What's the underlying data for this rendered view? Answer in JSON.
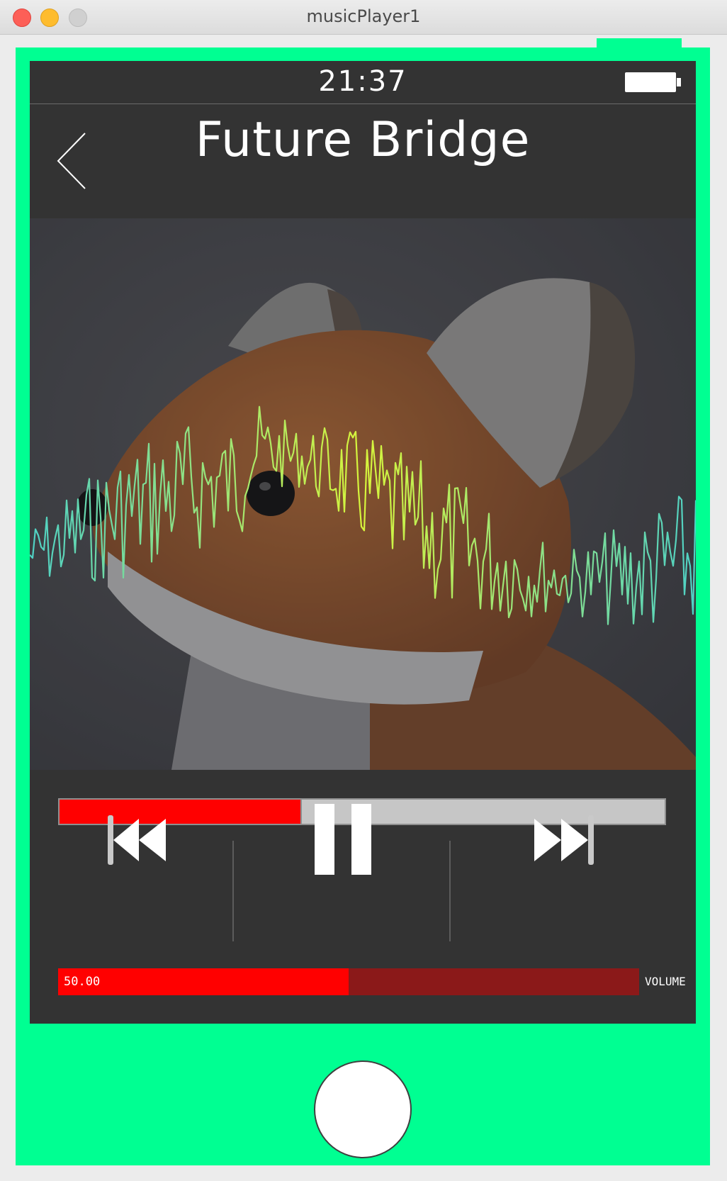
{
  "window": {
    "title": "musicPlayer1"
  },
  "status_bar": {
    "time": "21:37",
    "battery_icon": "battery-full-icon"
  },
  "header": {
    "title": "Future Bridge",
    "back_icon": "chevron-left-icon"
  },
  "artwork": {
    "subject": "plush-fox-photo",
    "overlay": "audio-waveform"
  },
  "playback": {
    "progress_fraction": 0.4,
    "state": "playing"
  },
  "controls": {
    "previous_icon": "skip-previous-icon",
    "pause_icon": "pause-icon",
    "next_icon": "skip-next-icon"
  },
  "volume": {
    "value": "50.00",
    "label": "VOLUME",
    "fraction": 0.5
  },
  "colors": {
    "frame": "#00ff92",
    "screen": "#333333",
    "progress_fill": "#ff0000",
    "progress_track": "#c6c6c6",
    "volume_fill": "#ff0000",
    "volume_track": "#8b1919",
    "wave_start": "#4fd1c5",
    "wave_end": "#e6ff3b"
  }
}
